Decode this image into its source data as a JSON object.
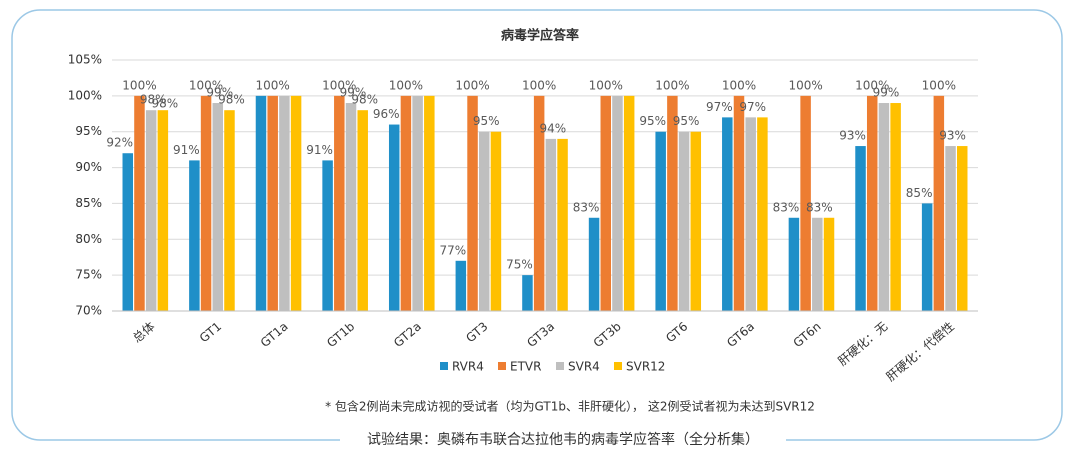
{
  "chart_data": {
    "type": "bar",
    "title": "病毒学应答率",
    "categories": [
      "总体",
      "GT1",
      "GT1a",
      "GT1b",
      "GT2a",
      "GT3",
      "GT3a",
      "GT3b",
      "GT6",
      "GT6a",
      "GT6n",
      "肝硬化：无",
      "肝硬化：代偿性"
    ],
    "series": [
      {
        "name": "RVR4",
        "color": "#1f8fc8",
        "values": [
          92,
          91,
          100,
          91,
          96,
          77,
          75,
          83,
          95,
          97,
          83,
          93,
          85
        ],
        "value_labels": [
          "92%",
          "91%",
          null,
          "91%",
          "96%",
          "77%",
          "75%",
          "83%",
          "95%",
          "97%",
          "83%",
          "93%",
          "85%"
        ]
      },
      {
        "name": "ETVR",
        "color": "#ed7d31",
        "values": [
          100,
          100,
          100,
          100,
          100,
          100,
          100,
          100,
          100,
          100,
          100,
          100,
          100
        ],
        "value_labels": [
          "100%",
          "100%",
          "100%",
          "100%",
          "100%",
          "100%",
          "100%",
          "100%",
          "100%",
          "100%",
          "100%",
          "100%",
          "100%"
        ]
      },
      {
        "name": "SVR4",
        "color": "#bfbfbf",
        "values": [
          98,
          99,
          100,
          99,
          100,
          95,
          94,
          100,
          95,
          97,
          83,
          99,
          93
        ],
        "value_labels": [
          "98%",
          "99%",
          null,
          "99%",
          null,
          "95%",
          "94%",
          null,
          "95%",
          "97%",
          "83%",
          "99%",
          "93%"
        ]
      },
      {
        "name": "SVR12",
        "color": "#ffc000",
        "values": [
          98,
          98,
          100,
          98,
          100,
          95,
          94,
          100,
          95,
          97,
          83,
          99,
          93
        ],
        "value_labels": [
          "98%",
          "98%",
          null,
          "98%",
          null,
          null,
          null,
          null,
          null,
          null,
          null,
          null,
          null
        ]
      }
    ],
    "ylim": [
      70,
      105
    ],
    "yticks": [
      {
        "value": 70,
        "label": "70%"
      },
      {
        "value": 75,
        "label": "75%"
      },
      {
        "value": 80,
        "label": "80%"
      },
      {
        "value": 85,
        "label": "85%"
      },
      {
        "value": 90,
        "label": "90%"
      },
      {
        "value": 95,
        "label": "95%"
      },
      {
        "value": 100,
        "label": "100%"
      },
      {
        "value": 105,
        "label": "105%"
      }
    ],
    "grid": true,
    "legend": "bottom",
    "footnote": "* 包含2例尚未完成访视的受试者（均为GT1b、非肝硬化）， 这2例受试者视为未达到SVR12",
    "caption": "试验结果：奥磷布韦联合达拉他韦的病毒学应答率（全分析集）"
  }
}
